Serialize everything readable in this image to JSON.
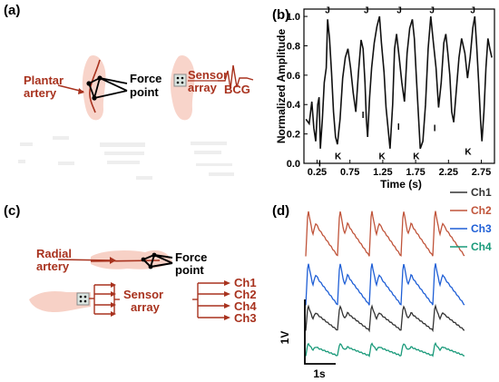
{
  "colors": {
    "red": "#a8321e",
    "ch1": "#333333",
    "ch2": "#c0543a",
    "ch3": "#1f5fd6",
    "ch4": "#1a9a7a",
    "skin": "#f5c6b8"
  },
  "panel_a": {
    "label": "(a)",
    "plantar_artery": [
      "Plantar",
      "artery"
    ],
    "force_point": [
      "Force",
      "point"
    ],
    "sensor_array": [
      "Sensor",
      "array"
    ],
    "bcg": "BCG"
  },
  "panel_c": {
    "label": "(c)",
    "radial_artery": [
      "Radial",
      "artery"
    ],
    "force_point": [
      "Force",
      "point"
    ],
    "sensor_array": [
      "Sensor",
      "array"
    ],
    "outputs": [
      "Ch1",
      "Ch2",
      "Ch4",
      "Ch3"
    ]
  },
  "panel_b": {
    "label": "(b)"
  },
  "panel_d": {
    "label": "(d)",
    "scale_v": "1V",
    "scale_t": "1s"
  },
  "chart_data": [
    {
      "type": "line",
      "xlabel": "Time (s)",
      "ylabel": "Normalized Amplitude",
      "xlim": [
        0.05,
        2.95
      ],
      "ylim": [
        0.0,
        1.05
      ],
      "x_ticks": [
        0.25,
        0.75,
        1.25,
        1.75,
        2.25,
        2.75
      ],
      "y_ticks": [
        0.0,
        0.2,
        0.4,
        0.6,
        0.8,
        1.0
      ],
      "x_tick_labels": [
        "0.25",
        "0.75",
        "1.25",
        "1.75",
        "2.25",
        "2.75"
      ],
      "y_tick_labels": [
        "0.0",
        "0.2",
        "0.4",
        "0.6",
        "0.8",
        "1.0"
      ],
      "series": [
        {
          "x": [
            0.08,
            0.13,
            0.17,
            0.2,
            0.23,
            0.26,
            0.28,
            0.3,
            0.33,
            0.36,
            0.39,
            0.41,
            0.44,
            0.47,
            0.5,
            0.53,
            0.56,
            0.6,
            0.64,
            0.68,
            0.72,
            0.76,
            0.8,
            0.84,
            0.88,
            0.92,
            0.95,
            0.98,
            1.0,
            1.02,
            1.05,
            1.08,
            1.12,
            1.16,
            1.2,
            1.23,
            1.27,
            1.3,
            1.33,
            1.36,
            1.4,
            1.43,
            1.46,
            1.5,
            1.54,
            1.58,
            1.62,
            1.66,
            1.7,
            1.73,
            1.76,
            1.79,
            1.82,
            1.86,
            1.9,
            1.94,
            1.98,
            2.02,
            2.06,
            2.1,
            2.14,
            2.18,
            2.21,
            2.24,
            2.27,
            2.3,
            2.33,
            2.37,
            2.41,
            2.45,
            2.5,
            2.54,
            2.58,
            2.62,
            2.65,
            2.68,
            2.71,
            2.74,
            2.76,
            2.79,
            2.82,
            2.85,
            2.88,
            2.91
          ],
          "y": [
            0.3,
            0.27,
            0.42,
            0.24,
            0.15,
            0.4,
            0.45,
            0.1,
            0.3,
            0.55,
            0.65,
            0.98,
            0.85,
            0.62,
            0.35,
            0.18,
            0.13,
            0.3,
            0.58,
            0.72,
            0.78,
            0.65,
            0.48,
            0.35,
            0.62,
            0.84,
            0.78,
            0.55,
            0.3,
            0.18,
            0.45,
            0.65,
            0.82,
            0.93,
            1.0,
            0.82,
            0.62,
            0.38,
            0.24,
            0.1,
            0.4,
            0.78,
            0.88,
            0.72,
            0.55,
            0.42,
            0.75,
            0.92,
            0.98,
            0.85,
            0.6,
            0.35,
            0.1,
            0.15,
            0.4,
            0.78,
            1.0,
            0.82,
            0.65,
            0.38,
            0.55,
            0.82,
            0.88,
            0.75,
            0.6,
            0.35,
            0.28,
            0.5,
            0.72,
            0.85,
            0.75,
            0.58,
            0.72,
            0.92,
            1.0,
            0.8,
            0.55,
            0.28,
            0.15,
            0.35,
            0.65,
            0.85,
            0.78,
            0.72
          ]
        }
      ],
      "annotations": [
        {
          "text": "J",
          "x": 0.41,
          "y": 1.01
        },
        {
          "text": "J",
          "x": 1.0,
          "y": 1.01
        },
        {
          "text": "J",
          "x": 1.5,
          "y": 1.01
        },
        {
          "text": "J",
          "x": 2.0,
          "y": 1.01
        },
        {
          "text": "J",
          "x": 2.62,
          "y": 1.01
        },
        {
          "text": "K",
          "x": 0.57,
          "y": 0.09
        },
        {
          "text": "K",
          "x": 1.24,
          "y": 0.09
        },
        {
          "text": "K",
          "x": 1.76,
          "y": 0.09
        },
        {
          "text": "K",
          "x": 2.55,
          "y": 0.12
        },
        {
          "text": "I",
          "x": 0.29,
          "y": 0.04
        },
        {
          "text": "I",
          "x": 0.95,
          "y": 0.37
        },
        {
          "text": "I",
          "x": 1.49,
          "y": 0.29
        },
        {
          "text": "I",
          "x": 2.04,
          "y": 0.28
        }
      ]
    },
    {
      "type": "line",
      "xlabel": "",
      "ylabel": "",
      "series": [
        {
          "name": "Ch1",
          "color": "#333333"
        },
        {
          "name": "Ch2",
          "color": "#c0543a"
        },
        {
          "name": "Ch3",
          "color": "#1f5fd6"
        },
        {
          "name": "Ch4",
          "color": "#1a9a7a"
        }
      ],
      "beats_per_trace": 5
    }
  ]
}
